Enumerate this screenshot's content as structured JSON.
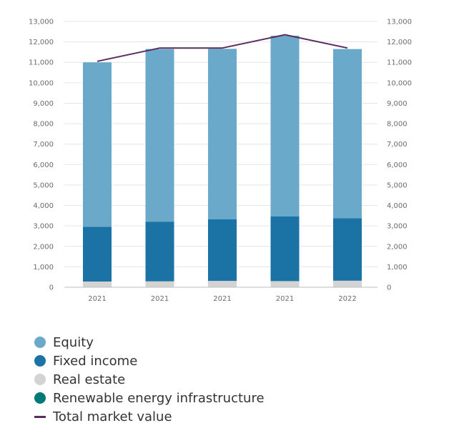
{
  "chart_data": {
    "type": "bar",
    "stacked": true,
    "categories": [
      "2021",
      "2021",
      "2021",
      "2021",
      "2022"
    ],
    "series": [
      {
        "name": "Real estate",
        "color": "#d3d3d3",
        "values": [
          280,
          290,
          310,
          300,
          320
        ]
      },
      {
        "name": "Renewable energy infrastructure",
        "color": "#007a78",
        "values": [
          0,
          0,
          0,
          0,
          0
        ]
      },
      {
        "name": "Fixed income",
        "color": "#1a73a4",
        "values": [
          2680,
          2920,
          3020,
          3160,
          3060
        ]
      },
      {
        "name": "Equity",
        "color": "#6aa9c9",
        "values": [
          8040,
          8440,
          8330,
          8840,
          8270
        ]
      }
    ],
    "line": {
      "name": "Total market value",
      "color": "#5b2c5e",
      "values": [
        11050,
        11700,
        11700,
        12350,
        11700
      ]
    },
    "ylim": [
      0,
      13000
    ],
    "yticks": [
      "0",
      "1,000",
      "2,000",
      "3,000",
      "4,000",
      "5,000",
      "6,000",
      "7,000",
      "8,000",
      "9,000",
      "10,000",
      "11,000",
      "12,000",
      "13,000"
    ],
    "ytick_values": [
      0,
      1000,
      2000,
      3000,
      4000,
      5000,
      6000,
      7000,
      8000,
      9000,
      10000,
      11000,
      12000,
      13000
    ],
    "y_axis_right": true,
    "grid": true,
    "legend_position": "bottom-left"
  },
  "legend": [
    {
      "label": "Equity",
      "color": "#6aa9c9",
      "kind": "dot"
    },
    {
      "label": "Fixed income",
      "color": "#1a73a4",
      "kind": "dot"
    },
    {
      "label": "Real estate",
      "color": "#d3d3d3",
      "kind": "dot"
    },
    {
      "label": "Renewable energy infrastructure",
      "color": "#007a78",
      "kind": "dot"
    },
    {
      "label": "Total market value",
      "color": "#5b2c5e",
      "kind": "line"
    }
  ]
}
